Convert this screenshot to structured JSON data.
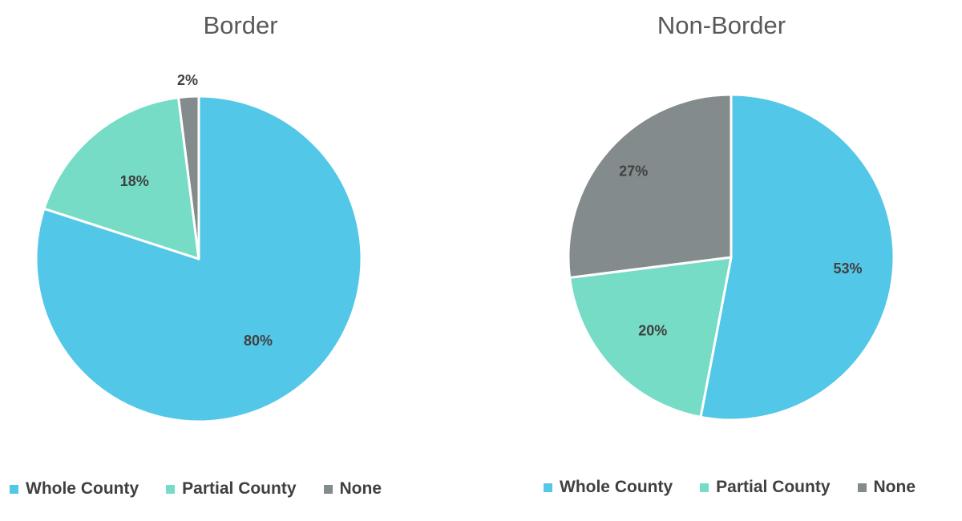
{
  "colors": {
    "whole_county": "#53C7E8",
    "partial_county": "#76DCC6",
    "none": "#848B8C"
  },
  "chart_data": [
    {
      "type": "pie",
      "title": "Border",
      "categories": [
        "Whole County",
        "Partial County",
        "None"
      ],
      "values": [
        80,
        18,
        2
      ],
      "data_labels": [
        "80%",
        "18%",
        "2%"
      ],
      "legend": {
        "placement": "bottom",
        "entries": [
          "Whole County",
          "Partial County",
          "None"
        ]
      }
    },
    {
      "type": "pie",
      "title": "Non-Border",
      "categories": [
        "Whole County",
        "Partial County",
        "None"
      ],
      "values": [
        53,
        20,
        27
      ],
      "data_labels": [
        "53%",
        "20%",
        "27%"
      ],
      "legend": {
        "placement": "bottom",
        "entries": [
          "Whole County",
          "Partial County",
          "None"
        ]
      }
    }
  ]
}
